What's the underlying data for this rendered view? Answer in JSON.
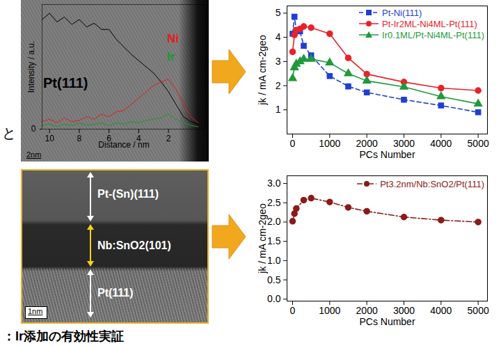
{
  "chart_data": [
    {
      "type": "line",
      "ylabel": "Intensity / a.u.",
      "xlabel": "Distance / nm",
      "x": [
        10.5,
        10,
        9.5,
        9,
        8.5,
        8,
        7.5,
        7,
        6.5,
        6,
        5.5,
        5,
        4.5,
        4,
        3.5,
        3,
        2.5,
        2,
        1.5,
        1,
        0.5,
        0
      ],
      "series": [
        {
          "name": "Pt(111)",
          "color": "#000000",
          "marker": "none",
          "line_style": "solid",
          "values": [
            0.88,
            0.93,
            0.86,
            0.9,
            0.84,
            0.88,
            0.82,
            0.85,
            0.8,
            0.8,
            0.72,
            0.66,
            0.6,
            0.55,
            0.5,
            0.45,
            0.38,
            0.3,
            0.2,
            0.1,
            0.06,
            0.04
          ]
        },
        {
          "name": "Ni",
          "color": "#e0201b",
          "marker": "none",
          "line_style": "solid",
          "values": [
            0.06,
            0.08,
            0.05,
            0.09,
            0.06,
            0.07,
            0.1,
            0.08,
            0.12,
            0.1,
            0.14,
            0.15,
            0.2,
            0.25,
            0.3,
            0.35,
            0.38,
            0.4,
            0.32,
            0.2,
            0.1,
            0.05
          ]
        },
        {
          "name": "Ir",
          "color": "#1a9a2a",
          "marker": "none",
          "line_style": "solid",
          "values": [
            0.03,
            0.04,
            0.02,
            0.04,
            0.03,
            0.05,
            0.03,
            0.04,
            0.05,
            0.03,
            0.05,
            0.04,
            0.06,
            0.05,
            0.07,
            0.08,
            0.09,
            0.12,
            0.08,
            0.05,
            0.03,
            0.02
          ]
        }
      ],
      "xlim": [
        10.5,
        -0.5
      ],
      "xticks": [
        10,
        8,
        6,
        4,
        2
      ],
      "ylim": [
        0,
        1
      ],
      "yticks": [
        0
      ],
      "grid": false
    },
    {
      "type": "line",
      "ylabel": "jk / mA cm-2geo",
      "xlabel": "PCs Number",
      "x": [
        0,
        50,
        100,
        200,
        300,
        500,
        1000,
        1500,
        2000,
        3000,
        4000,
        5000
      ],
      "series": [
        {
          "name": "Pt-Ni(111)",
          "color": "#1f3fd1",
          "marker": "square",
          "line_style": "dashed",
          "values": [
            4.15,
            4.85,
            4.3,
            4.25,
            3.65,
            3.25,
            2.4,
            1.97,
            1.72,
            1.42,
            1.18,
            0.9
          ]
        },
        {
          "name": "Pt-Ir2ML-Ni4ML-Pt(111)",
          "color": "#e8222a",
          "marker": "circle",
          "line_style": "solid",
          "values": [
            3.4,
            4.1,
            4.3,
            4.35,
            4.45,
            4.4,
            4.15,
            3.15,
            2.48,
            2.15,
            1.9,
            1.8
          ]
        },
        {
          "name": "Ir0.1ML/Pt-Ni4ML-Pt(111)",
          "color": "#1f9a3a",
          "marker": "triangle",
          "line_style": "solid",
          "values": [
            2.3,
            2.75,
            2.9,
            3.0,
            3.1,
            3.1,
            2.95,
            2.5,
            2.2,
            1.95,
            1.55,
            1.25
          ]
        }
      ],
      "xlim": [
        -150,
        5250
      ],
      "xticks": [
        0,
        1000,
        2000,
        3000,
        4000,
        5000
      ],
      "ylim": [
        0,
        5.3
      ],
      "yticks": [
        1,
        2,
        3,
        4,
        5
      ],
      "grid": false,
      "legend": "top-right"
    },
    {
      "type": "line",
      "ylabel": "jk / mA cm-2geo",
      "xlabel": "PCs Number",
      "x": [
        0,
        50,
        100,
        300,
        500,
        1000,
        1500,
        2000,
        3000,
        4000,
        5000
      ],
      "series": [
        {
          "name": "Pt3.2nm/Nb:SnO2/Pt(111)",
          "color": "#8b1a1a",
          "marker": "circle",
          "line_style": "dashdot",
          "values": [
            2.02,
            2.22,
            2.35,
            2.57,
            2.62,
            2.52,
            2.38,
            2.28,
            2.13,
            2.05,
            2.0
          ]
        }
      ],
      "xlim": [
        -150,
        5250
      ],
      "xticks": [
        0,
        1000,
        2000,
        3000,
        4000,
        5000
      ],
      "ylim": [
        -0.05,
        3.2
      ],
      "yticks": [
        {
          "value": 0,
          "label": "0.0"
        },
        0.5,
        {
          "value": 1,
          "label": "1.0"
        },
        1.5,
        {
          "value": 2,
          "label": "2.0"
        },
        2.5,
        {
          "value": 3,
          "label": "3.0"
        }
      ],
      "grid": false,
      "legend": "top-right"
    }
  ],
  "images": [
    {
      "scale_bar": "2nm"
    },
    {
      "layers": [
        "Pt-(Sn)(111)",
        "Nb:SnO2(101)",
        "Pt(111)"
      ],
      "scale_bar": "1nm"
    }
  ],
  "side_text": "と",
  "footer": "：Ir添加の有効性実証"
}
